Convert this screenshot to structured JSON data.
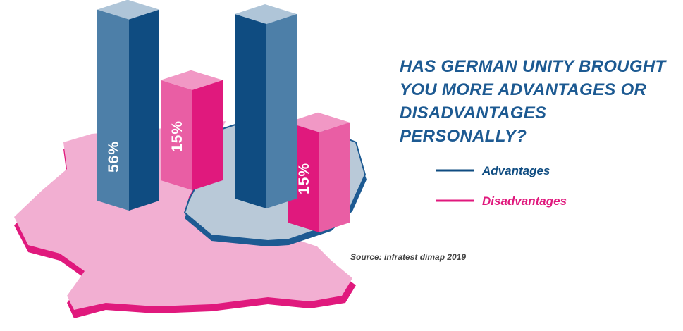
{
  "chart_data": {
    "type": "bar3d",
    "title": "HAS GERMAN UNITY BROUGHT YOU MORE ADVANTAGES OR DISADVANTAGES PERSONALLY?",
    "source": "Source: infratest dimap 2019",
    "categories": [
      null,
      null
    ],
    "series": [
      {
        "name": "Advantages",
        "color": "#0f4c81",
        "values": [
          56,
          53
        ],
        "value_labels": [
          "56%",
          null
        ]
      },
      {
        "name": "Disadvantages",
        "color": "#e0197d",
        "values": [
          15,
          15
        ],
        "value_labels": [
          "15%",
          "15%"
        ]
      }
    ]
  }
}
